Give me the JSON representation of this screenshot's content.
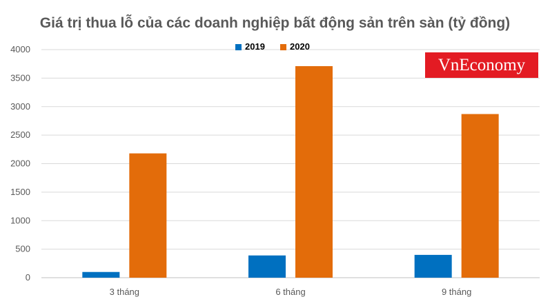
{
  "chart_data": {
    "type": "bar",
    "title": "Giá trị thua lỗ của các doanh nghiệp bất động sản trên sàn (tỷ đồng)",
    "categories": [
      "3 tháng",
      "6 tháng",
      "9 tháng"
    ],
    "series": [
      {
        "name": "2019",
        "color": "#0070c0",
        "values": [
          100,
          390,
          400
        ]
      },
      {
        "name": "2020",
        "color": "#e36c0a",
        "values": [
          2180,
          3710,
          2870
        ]
      }
    ],
    "ylim": [
      0,
      4000
    ],
    "yticks": [
      0,
      500,
      1000,
      1500,
      2000,
      2500,
      3000,
      3500,
      4000
    ],
    "grid": true,
    "legend": "top-center"
  },
  "watermark": {
    "text": "VnEconomy",
    "color": "#e31b23"
  }
}
